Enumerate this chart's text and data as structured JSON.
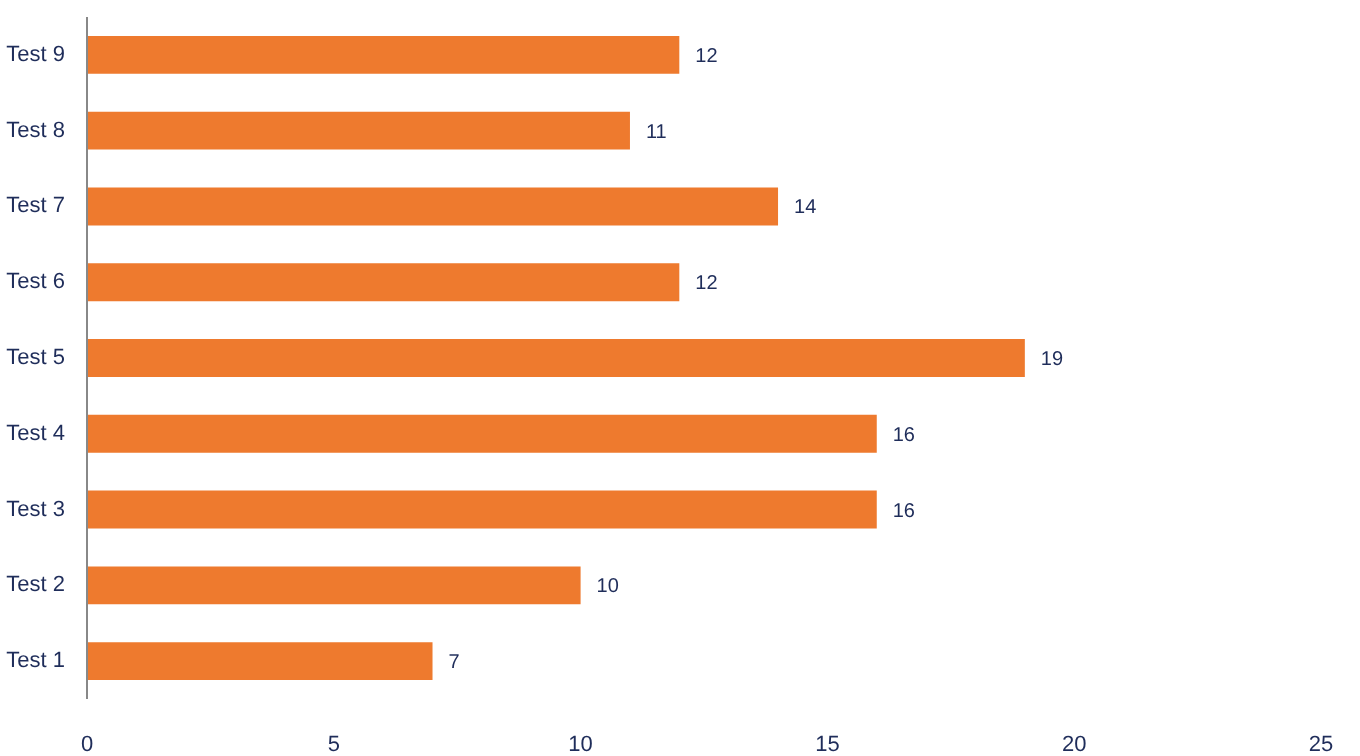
{
  "chart_data": {
    "type": "bar",
    "orientation": "horizontal",
    "categories": [
      "Test 9",
      "Test 8",
      "Test 7",
      "Test 6",
      "Test 5",
      "Test 4",
      "Test 3",
      "Test 2",
      "Test 1"
    ],
    "values": [
      12,
      11,
      14,
      12,
      19,
      16,
      16,
      10,
      7
    ],
    "color": "#ee7a2e",
    "xlim": [
      0,
      25
    ],
    "xticks": [
      0,
      5,
      10,
      15,
      20,
      25
    ],
    "grid": false,
    "data_labels": true
  }
}
